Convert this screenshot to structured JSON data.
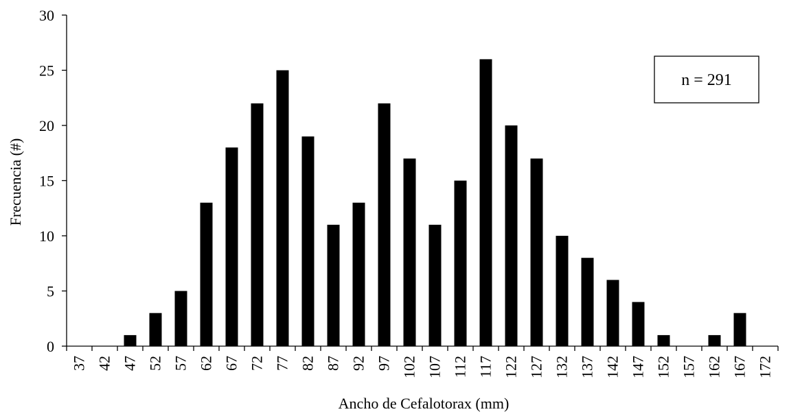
{
  "chart_data": {
    "type": "bar",
    "title": "",
    "xlabel": "Ancho de Cefalotorax (mm)",
    "ylabel": "Frecuencia (#)",
    "ylim": [
      0,
      30
    ],
    "yticks": [
      "0",
      "5",
      "10",
      "15",
      "20",
      "25",
      "30"
    ],
    "grid": false,
    "annotation": "n = 291",
    "annotation_position": "top-right",
    "bar_color": "#000000",
    "categories": [
      "37",
      "42",
      "47",
      "52",
      "57",
      "62",
      "67",
      "72",
      "77",
      "82",
      "87",
      "92",
      "97",
      "102",
      "107",
      "112",
      "117",
      "122",
      "127",
      "132",
      "137",
      "142",
      "147",
      "152",
      "157",
      "162",
      "167",
      "172"
    ],
    "values": [
      0,
      0,
      1,
      3,
      5,
      13,
      18,
      22,
      25,
      19,
      11,
      13,
      22,
      17,
      11,
      15,
      26,
      20,
      17,
      10,
      8,
      6,
      4,
      1,
      0,
      1,
      3,
      0
    ]
  }
}
